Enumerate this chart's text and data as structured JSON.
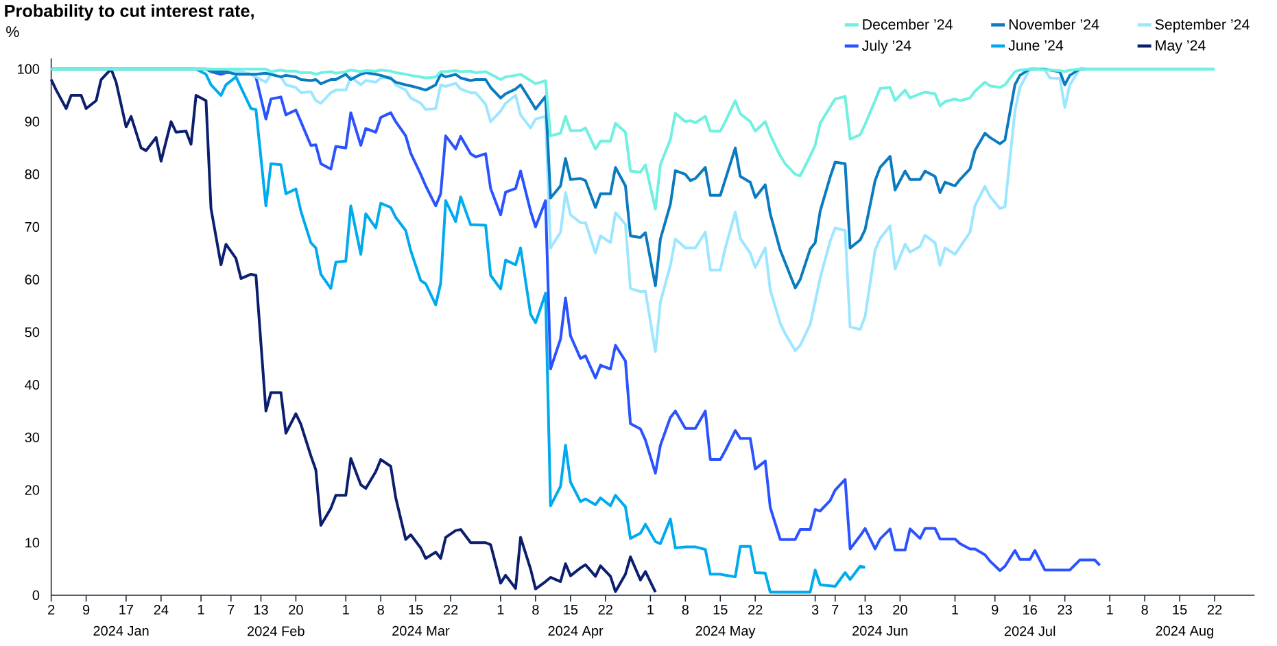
{
  "chart_data": {
    "type": "line",
    "title": "Probability to cut interest rate,",
    "ylabel": "%",
    "x": [
      "2024-01-02",
      "2024-01-03",
      "2024-01-05",
      "2024-01-06",
      "2024-01-08",
      "2024-01-09",
      "2024-01-11",
      "2024-01-12",
      "2024-01-14",
      "2024-01-15",
      "2024-01-17",
      "2024-01-18",
      "2024-01-20",
      "2024-01-21",
      "2024-01-23",
      "2024-01-24",
      "2024-01-26",
      "2024-01-27",
      "2024-01-29",
      "2024-01-30",
      "2024-01-31",
      "2024-02-02",
      "2024-02-03",
      "2024-02-05",
      "2024-02-06",
      "2024-02-08",
      "2024-02-09",
      "2024-02-11",
      "2024-02-12",
      "2024-02-14",
      "2024-02-15",
      "2024-02-17",
      "2024-02-18",
      "2024-02-20",
      "2024-02-21",
      "2024-02-23",
      "2024-02-24",
      "2024-02-25",
      "2024-02-27",
      "2024-02-28",
      "2024-03-01",
      "2024-03-02",
      "2024-03-04",
      "2024-03-05",
      "2024-03-07",
      "2024-03-08",
      "2024-03-10",
      "2024-03-11",
      "2024-03-13",
      "2024-03-14",
      "2024-03-16",
      "2024-03-17",
      "2024-03-19",
      "2024-03-20",
      "2024-03-21",
      "2024-03-23",
      "2024-03-24",
      "2024-03-26",
      "2024-03-27",
      "2024-03-29",
      "2024-03-30",
      "2024-04-01",
      "2024-04-02",
      "2024-04-04",
      "2024-04-05",
      "2024-04-07",
      "2024-04-08",
      "2024-04-10",
      "2024-04-11",
      "2024-04-13",
      "2024-04-14",
      "2024-04-15",
      "2024-04-17",
      "2024-04-18",
      "2024-04-20",
      "2024-04-21",
      "2024-04-23",
      "2024-04-24",
      "2024-04-26",
      "2024-04-27",
      "2024-04-29",
      "2024-04-30",
      "2024-05-02",
      "2024-05-03",
      "2024-05-05",
      "2024-05-06",
      "2024-05-08",
      "2024-05-09",
      "2024-05-10",
      "2024-05-12",
      "2024-05-13",
      "2024-05-15",
      "2024-05-16",
      "2024-05-18",
      "2024-05-19",
      "2024-05-21",
      "2024-05-22",
      "2024-05-24",
      "2024-05-25",
      "2024-05-27",
      "2024-05-28",
      "2024-05-30",
      "2024-05-31",
      "2024-06-02",
      "2024-06-03",
      "2024-06-04",
      "2024-06-06",
      "2024-06-07",
      "2024-06-09",
      "2024-06-10",
      "2024-06-12",
      "2024-06-13",
      "2024-06-15",
      "2024-06-16",
      "2024-06-18",
      "2024-06-19",
      "2024-06-21",
      "2024-06-22",
      "2024-06-24",
      "2024-06-25",
      "2024-06-27",
      "2024-06-28",
      "2024-06-29",
      "2024-07-01",
      "2024-07-02",
      "2024-07-04",
      "2024-07-05",
      "2024-07-07",
      "2024-07-08",
      "2024-07-10",
      "2024-07-11",
      "2024-07-13",
      "2024-07-14",
      "2024-07-16",
      "2024-07-17",
      "2024-07-19",
      "2024-07-20",
      "2024-07-22",
      "2024-07-23",
      "2024-07-24",
      "2024-07-26",
      "2024-07-27",
      "2024-07-29",
      "2024-07-30",
      "2024-08-22"
    ],
    "series": [
      {
        "name": "December ’24",
        "color": "#6ff0e0",
        "values": [
          100,
          100,
          100,
          100,
          100,
          100,
          100,
          100,
          100,
          100,
          100,
          100,
          100,
          100,
          100,
          100,
          100,
          100,
          100,
          100,
          100,
          100,
          100,
          100,
          100,
          100,
          100,
          100,
          100,
          100,
          99.5,
          99.8,
          99.6,
          99.6,
          99.3,
          99.3,
          99,
          99.3,
          99.5,
          99.2,
          99.5,
          99.8,
          99.5,
          99.7,
          99.6,
          99.8,
          99.6,
          99.3,
          99,
          98.8,
          98.5,
          98.3,
          98.5,
          99.5,
          99.5,
          99.7,
          99.5,
          99.6,
          99.3,
          99.5,
          99,
          98,
          98.5,
          98.8,
          99,
          97.8,
          97.2,
          97.8,
          87.3,
          87.8,
          91,
          88.3,
          88.3,
          88.8,
          84.8,
          86.3,
          86.3,
          89.7,
          88,
          80.6,
          80.4,
          81.8,
          73.4,
          81.8,
          86.6,
          91.6,
          90,
          90.2,
          89.8,
          91,
          88.2,
          88.2,
          90,
          94,
          91.5,
          90,
          88.2,
          90,
          87.5,
          83.5,
          82,
          80,
          79.7,
          83.5,
          85.5,
          89.7,
          92.8,
          94.3,
          94.8,
          86.7,
          87.5,
          89.5,
          94,
          96.3,
          96.5,
          94,
          96,
          94.5,
          95.3,
          95.6,
          95.3,
          93,
          93.8,
          94.3,
          94,
          94.5,
          95.8,
          97.5,
          96.8,
          96.5,
          97,
          99.5,
          99.8,
          100,
          100,
          99.9,
          99.8,
          99.7,
          99.5,
          99.8,
          100,
          100,
          100,
          100,
          100
        ]
      },
      {
        "name": "November ’24",
        "color": "#0a7bc1",
        "values": [
          100,
          100,
          100,
          100,
          100,
          100,
          100,
          100,
          100,
          100,
          100,
          100,
          100,
          100,
          100,
          100,
          100,
          100,
          100,
          100,
          100,
          100,
          99.5,
          99.5,
          99.5,
          99,
          99,
          99,
          99,
          99.2,
          99,
          98.5,
          98.8,
          98.5,
          98,
          97.8,
          98,
          97.2,
          98,
          98,
          99,
          98,
          99,
          99.3,
          99,
          98.8,
          98.2,
          97.5,
          97,
          96.8,
          96.3,
          96,
          97,
          99,
          98.5,
          99,
          98.3,
          97.8,
          98,
          98,
          96.5,
          94.5,
          95.3,
          96.2,
          97,
          94,
          92.4,
          94.8,
          75.5,
          77.8,
          83,
          79,
          79.2,
          78.8,
          73.7,
          76.3,
          76.3,
          81.3,
          77.8,
          68.3,
          68,
          68.9,
          58.8,
          67.7,
          74.3,
          80.7,
          80,
          78.8,
          79.2,
          81.3,
          76,
          76,
          79,
          85,
          79.6,
          78.5,
          75.6,
          78,
          72.5,
          65.6,
          63.2,
          58.4,
          60,
          65.8,
          67,
          73,
          79.5,
          82.3,
          82,
          66,
          67.5,
          69.5,
          78.8,
          81.3,
          83.4,
          77,
          80.6,
          79,
          79,
          80.6,
          79.6,
          76.5,
          78.5,
          77.8,
          79,
          81,
          84.5,
          87.8,
          87,
          85.8,
          86.5,
          97,
          98.8,
          100,
          100,
          100,
          99.8,
          99.5,
          97,
          98.8,
          100,
          100,
          null,
          null,
          null
        ]
      },
      {
        "name": "September ’24",
        "color": "#9de6ff",
        "values": [
          100,
          100,
          100,
          100,
          100,
          100,
          100,
          100,
          100,
          100,
          100,
          100,
          100,
          100,
          100,
          100,
          100,
          100,
          100,
          100,
          100,
          100,
          100,
          99.5,
          99.5,
          99.5,
          99.5,
          99,
          98.5,
          97.5,
          99,
          98.5,
          97,
          96.5,
          95.5,
          95.7,
          94,
          93.5,
          95.5,
          96,
          96,
          98.5,
          97,
          97.8,
          97.5,
          98.3,
          98.5,
          97,
          96,
          94.5,
          93.5,
          92.3,
          92.5,
          97,
          96.7,
          97.3,
          96.2,
          95.5,
          95.5,
          93.3,
          90,
          92,
          93.5,
          95,
          91.3,
          88.8,
          90.5,
          91,
          66,
          69,
          76.5,
          72.3,
          70.8,
          70.8,
          65,
          68.3,
          67,
          72.7,
          70.5,
          58.3,
          57.7,
          57.8,
          46.3,
          55.7,
          62.7,
          67.7,
          66,
          66,
          66,
          69,
          61.8,
          61.8,
          66,
          72.8,
          67.8,
          65,
          62.3,
          66,
          58,
          51.7,
          49.7,
          46.5,
          47.5,
          51.5,
          55.8,
          60.3,
          67.3,
          69.8,
          69.3,
          51,
          50.5,
          53,
          65.6,
          67.8,
          70.2,
          62,
          66.7,
          65.2,
          66.3,
          68.4,
          67,
          62.7,
          66,
          64.8,
          66.2,
          69,
          74,
          77.7,
          75.8,
          73.5,
          73.8,
          92,
          96.5,
          100,
          100,
          99.8,
          98.3,
          98.2,
          92.7,
          97,
          100,
          100,
          100,
          100,
          100
        ]
      },
      {
        "name": "July ’24",
        "color": "#2b52ff",
        "values": [
          null,
          null,
          null,
          null,
          null,
          null,
          null,
          null,
          null,
          null,
          null,
          null,
          null,
          null,
          null,
          null,
          null,
          null,
          null,
          null,
          null,
          null,
          99.5,
          99,
          99.3,
          99.5,
          99.3,
          99,
          98.5,
          90.5,
          94.3,
          94.7,
          91.3,
          92.2,
          90,
          85.5,
          85.6,
          82,
          81,
          85.3,
          85,
          91.7,
          85.5,
          88.7,
          88,
          90.8,
          91.7,
          90,
          87.3,
          84,
          80,
          77.8,
          74,
          76.3,
          87.3,
          84.8,
          87.2,
          83.9,
          83.3,
          83.9,
          77.3,
          72.3,
          76.6,
          77.3,
          80.6,
          73,
          70,
          75,
          43,
          48.7,
          56.5,
          49.3,
          45,
          45.5,
          41.3,
          43.7,
          43,
          47.5,
          44.5,
          32.6,
          31.6,
          29.5,
          23.2,
          28.5,
          33.8,
          35,
          31.7,
          31.7,
          31.7,
          35,
          25.8,
          25.8,
          27.5,
          31.3,
          29.8,
          29.8,
          24,
          25.5,
          16.7,
          10.6,
          10.6,
          10.6,
          12.5,
          12.5,
          16.3,
          16,
          18,
          20,
          22,
          8.8,
          11.3,
          12.7,
          8.8,
          10.7,
          12.6,
          8.6,
          8.6,
          12.6,
          10.8,
          12.7,
          12.7,
          10.7,
          10.7,
          10.7,
          9.8,
          8.8,
          8.8,
          7.7,
          6.5,
          4.7,
          5.5,
          8.5,
          6.8,
          6.8,
          8.5,
          4.8,
          4.8,
          4.8,
          4.8,
          4.8,
          6.7,
          6.7,
          6.7,
          5.7,
          null
        ]
      },
      {
        "name": "June ’24",
        "color": "#00aaee",
        "values": [
          100,
          100,
          100,
          100,
          100,
          100,
          100,
          100,
          100,
          100,
          100,
          100,
          100,
          100,
          100,
          100,
          100,
          100,
          100,
          100,
          100,
          99,
          97,
          95,
          97,
          98.5,
          96.5,
          92.5,
          92.3,
          74,
          82,
          81.8,
          76.3,
          77.2,
          73,
          67,
          66,
          61,
          58.3,
          63.3,
          63.5,
          74,
          64.8,
          72.5,
          69.8,
          74.5,
          73.7,
          71.8,
          69.3,
          65.5,
          59.8,
          59.2,
          55.2,
          59.3,
          75,
          71,
          75.7,
          70.4,
          70.4,
          70.3,
          60.8,
          58.2,
          63.7,
          62.8,
          66,
          53.4,
          51.8,
          57.4,
          17,
          20.7,
          28.5,
          21.5,
          17.8,
          18.3,
          17.2,
          18.5,
          17,
          19,
          16.8,
          10.8,
          11.8,
          13.5,
          10.2,
          9.8,
          14.5,
          9,
          9.2,
          9.2,
          9.2,
          8.7,
          4,
          4,
          3.8,
          3.5,
          9.3,
          9.3,
          4.3,
          4.2,
          0.6,
          0.6,
          0.6,
          0.6,
          0.6,
          0.6,
          4.8,
          2,
          1.8,
          1.7,
          4.3,
          3,
          5.5,
          5.3,
          null,
          null,
          null,
          null,
          null,
          null,
          null,
          null,
          null,
          null,
          null,
          null,
          null,
          null,
          null,
          null,
          null,
          null,
          null,
          null,
          null,
          null,
          null,
          null,
          null,
          null,
          null,
          null,
          null,
          null,
          null,
          null,
          null
        ]
      },
      {
        "name": "May ’24",
        "color": "#0b1f6e",
        "values": [
          98,
          96,
          92.5,
          95,
          95,
          92.5,
          94,
          98,
          100,
          97.5,
          89,
          91,
          85,
          84.5,
          87,
          82.5,
          90,
          88,
          88.2,
          85.7,
          95,
          94,
          73.5,
          62.8,
          66.7,
          64,
          60.2,
          61,
          60.8,
          35,
          38.5,
          38.5,
          30.8,
          34.5,
          32.5,
          26.5,
          23.8,
          13.3,
          16.5,
          19,
          19,
          26,
          21,
          20.3,
          23.5,
          25.8,
          24.5,
          18.5,
          10.6,
          11.5,
          9,
          7,
          8.2,
          7,
          11,
          12.3,
          12.5,
          10,
          10,
          10,
          9.6,
          2.3,
          3.8,
          1.3,
          11,
          5,
          1.2,
          2.6,
          3.4,
          2.6,
          6,
          3.7,
          5.2,
          5.8,
          3.6,
          5.6,
          3.6,
          0.7,
          4,
          7.3,
          2.9,
          4.5,
          0.6,
          null,
          null,
          null,
          null,
          null,
          null,
          null,
          null,
          null,
          null,
          null,
          null,
          null,
          null,
          null,
          null,
          null,
          null,
          null,
          null,
          null,
          null,
          null,
          null,
          null,
          null,
          null,
          null,
          null,
          null,
          null,
          null,
          null,
          null,
          null,
          null,
          null,
          null,
          null,
          null,
          null,
          null,
          null,
          null,
          null,
          null,
          null,
          null,
          null,
          null,
          null,
          null,
          null,
          null,
          null,
          null,
          null,
          null,
          null,
          null,
          null,
          null
        ]
      }
    ],
    "xlim": [
      "2024-01-02",
      "2024-08-30"
    ],
    "xticks": [
      {
        "value": "2024-01-02",
        "label": "2"
      },
      {
        "value": "2024-01-09",
        "label": "9"
      },
      {
        "value": "2024-01-17",
        "label": "17"
      },
      {
        "value": "2024-01-24",
        "label": "24"
      },
      {
        "value": "2024-02-01",
        "label": "1"
      },
      {
        "value": "2024-02-07",
        "label": "7"
      },
      {
        "value": "2024-02-13",
        "label": "13"
      },
      {
        "value": "2024-02-20",
        "label": "20"
      },
      {
        "value": "2024-03-01",
        "label": "1"
      },
      {
        "value": "2024-03-08",
        "label": "8"
      },
      {
        "value": "2024-03-15",
        "label": "15"
      },
      {
        "value": "2024-03-22",
        "label": "22"
      },
      {
        "value": "2024-04-01",
        "label": "1"
      },
      {
        "value": "2024-04-08",
        "label": "8"
      },
      {
        "value": "2024-04-15",
        "label": "15"
      },
      {
        "value": "2024-04-22",
        "label": "22"
      },
      {
        "value": "2024-05-01",
        "label": "1"
      },
      {
        "value": "2024-05-08",
        "label": "8"
      },
      {
        "value": "2024-05-15",
        "label": "15"
      },
      {
        "value": "2024-05-22",
        "label": "22"
      },
      {
        "value": "2024-06-03",
        "label": "3"
      },
      {
        "value": "2024-06-07",
        "label": "7"
      },
      {
        "value": "2024-06-13",
        "label": "13"
      },
      {
        "value": "2024-06-20",
        "label": "20"
      },
      {
        "value": "2024-07-01",
        "label": "1"
      },
      {
        "value": "2024-07-09",
        "label": "9"
      },
      {
        "value": "2024-07-16",
        "label": "16"
      },
      {
        "value": "2024-07-23",
        "label": "23"
      },
      {
        "value": "2024-08-01",
        "label": "1"
      },
      {
        "value": "2024-08-08",
        "label": "8"
      },
      {
        "value": "2024-08-15",
        "label": "15"
      },
      {
        "value": "2024-08-22",
        "label": "22"
      }
    ],
    "ylim": [
      0,
      102
    ],
    "yticks": [
      0,
      10,
      20,
      30,
      40,
      50,
      60,
      70,
      80,
      90,
      100
    ],
    "annotations": [
      "2024 Jan",
      "2024 Feb",
      "2024 Mar",
      "2024 Apr",
      "2024 May",
      "2024 Jun",
      "2024 Jul",
      "2024 Aug"
    ],
    "legend": "top right",
    "marker": "none",
    "line_style": "solid"
  }
}
